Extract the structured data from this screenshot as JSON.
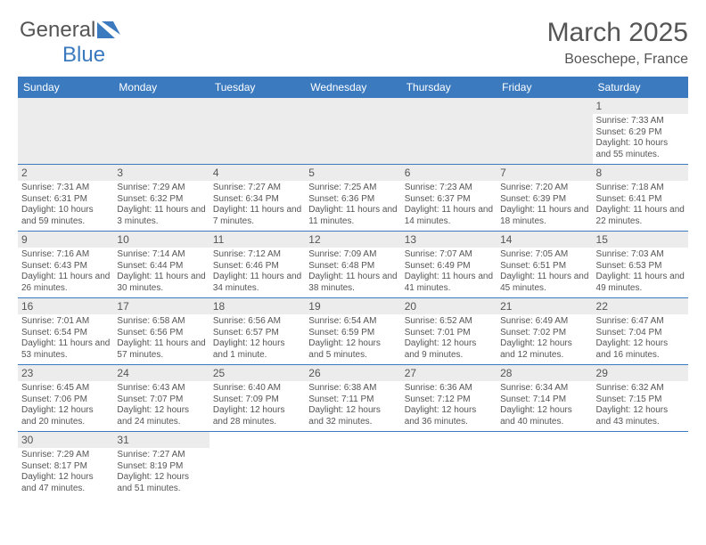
{
  "logo": {
    "text_general": "General",
    "text_blue": "Blue"
  },
  "title": "March 2025",
  "location": "Boeschepe, France",
  "colors": {
    "header_bg": "#3b7abf",
    "header_text": "#ffffff",
    "body_text": "#555555",
    "daynum_bg": "#ececec",
    "border": "#3b7abf"
  },
  "weekdays": [
    "Sunday",
    "Monday",
    "Tuesday",
    "Wednesday",
    "Thursday",
    "Friday",
    "Saturday"
  ],
  "grid": [
    [
      {
        "blank": true
      },
      {
        "blank": true
      },
      {
        "blank": true
      },
      {
        "blank": true
      },
      {
        "blank": true
      },
      {
        "blank": true
      },
      {
        "day": "1",
        "sunrise": "Sunrise: 7:33 AM",
        "sunset": "Sunset: 6:29 PM",
        "daylight": "Daylight: 10 hours and 55 minutes."
      }
    ],
    [
      {
        "day": "2",
        "sunrise": "Sunrise: 7:31 AM",
        "sunset": "Sunset: 6:31 PM",
        "daylight": "Daylight: 10 hours and 59 minutes."
      },
      {
        "day": "3",
        "sunrise": "Sunrise: 7:29 AM",
        "sunset": "Sunset: 6:32 PM",
        "daylight": "Daylight: 11 hours and 3 minutes."
      },
      {
        "day": "4",
        "sunrise": "Sunrise: 7:27 AM",
        "sunset": "Sunset: 6:34 PM",
        "daylight": "Daylight: 11 hours and 7 minutes."
      },
      {
        "day": "5",
        "sunrise": "Sunrise: 7:25 AM",
        "sunset": "Sunset: 6:36 PM",
        "daylight": "Daylight: 11 hours and 11 minutes."
      },
      {
        "day": "6",
        "sunrise": "Sunrise: 7:23 AM",
        "sunset": "Sunset: 6:37 PM",
        "daylight": "Daylight: 11 hours and 14 minutes."
      },
      {
        "day": "7",
        "sunrise": "Sunrise: 7:20 AM",
        "sunset": "Sunset: 6:39 PM",
        "daylight": "Daylight: 11 hours and 18 minutes."
      },
      {
        "day": "8",
        "sunrise": "Sunrise: 7:18 AM",
        "sunset": "Sunset: 6:41 PM",
        "daylight": "Daylight: 11 hours and 22 minutes."
      }
    ],
    [
      {
        "day": "9",
        "sunrise": "Sunrise: 7:16 AM",
        "sunset": "Sunset: 6:43 PM",
        "daylight": "Daylight: 11 hours and 26 minutes."
      },
      {
        "day": "10",
        "sunrise": "Sunrise: 7:14 AM",
        "sunset": "Sunset: 6:44 PM",
        "daylight": "Daylight: 11 hours and 30 minutes."
      },
      {
        "day": "11",
        "sunrise": "Sunrise: 7:12 AM",
        "sunset": "Sunset: 6:46 PM",
        "daylight": "Daylight: 11 hours and 34 minutes."
      },
      {
        "day": "12",
        "sunrise": "Sunrise: 7:09 AM",
        "sunset": "Sunset: 6:48 PM",
        "daylight": "Daylight: 11 hours and 38 minutes."
      },
      {
        "day": "13",
        "sunrise": "Sunrise: 7:07 AM",
        "sunset": "Sunset: 6:49 PM",
        "daylight": "Daylight: 11 hours and 41 minutes."
      },
      {
        "day": "14",
        "sunrise": "Sunrise: 7:05 AM",
        "sunset": "Sunset: 6:51 PM",
        "daylight": "Daylight: 11 hours and 45 minutes."
      },
      {
        "day": "15",
        "sunrise": "Sunrise: 7:03 AM",
        "sunset": "Sunset: 6:53 PM",
        "daylight": "Daylight: 11 hours and 49 minutes."
      }
    ],
    [
      {
        "day": "16",
        "sunrise": "Sunrise: 7:01 AM",
        "sunset": "Sunset: 6:54 PM",
        "daylight": "Daylight: 11 hours and 53 minutes."
      },
      {
        "day": "17",
        "sunrise": "Sunrise: 6:58 AM",
        "sunset": "Sunset: 6:56 PM",
        "daylight": "Daylight: 11 hours and 57 minutes."
      },
      {
        "day": "18",
        "sunrise": "Sunrise: 6:56 AM",
        "sunset": "Sunset: 6:57 PM",
        "daylight": "Daylight: 12 hours and 1 minute."
      },
      {
        "day": "19",
        "sunrise": "Sunrise: 6:54 AM",
        "sunset": "Sunset: 6:59 PM",
        "daylight": "Daylight: 12 hours and 5 minutes."
      },
      {
        "day": "20",
        "sunrise": "Sunrise: 6:52 AM",
        "sunset": "Sunset: 7:01 PM",
        "daylight": "Daylight: 12 hours and 9 minutes."
      },
      {
        "day": "21",
        "sunrise": "Sunrise: 6:49 AM",
        "sunset": "Sunset: 7:02 PM",
        "daylight": "Daylight: 12 hours and 12 minutes."
      },
      {
        "day": "22",
        "sunrise": "Sunrise: 6:47 AM",
        "sunset": "Sunset: 7:04 PM",
        "daylight": "Daylight: 12 hours and 16 minutes."
      }
    ],
    [
      {
        "day": "23",
        "sunrise": "Sunrise: 6:45 AM",
        "sunset": "Sunset: 7:06 PM",
        "daylight": "Daylight: 12 hours and 20 minutes."
      },
      {
        "day": "24",
        "sunrise": "Sunrise: 6:43 AM",
        "sunset": "Sunset: 7:07 PM",
        "daylight": "Daylight: 12 hours and 24 minutes."
      },
      {
        "day": "25",
        "sunrise": "Sunrise: 6:40 AM",
        "sunset": "Sunset: 7:09 PM",
        "daylight": "Daylight: 12 hours and 28 minutes."
      },
      {
        "day": "26",
        "sunrise": "Sunrise: 6:38 AM",
        "sunset": "Sunset: 7:11 PM",
        "daylight": "Daylight: 12 hours and 32 minutes."
      },
      {
        "day": "27",
        "sunrise": "Sunrise: 6:36 AM",
        "sunset": "Sunset: 7:12 PM",
        "daylight": "Daylight: 12 hours and 36 minutes."
      },
      {
        "day": "28",
        "sunrise": "Sunrise: 6:34 AM",
        "sunset": "Sunset: 7:14 PM",
        "daylight": "Daylight: 12 hours and 40 minutes."
      },
      {
        "day": "29",
        "sunrise": "Sunrise: 6:32 AM",
        "sunset": "Sunset: 7:15 PM",
        "daylight": "Daylight: 12 hours and 43 minutes."
      }
    ],
    [
      {
        "day": "30",
        "sunrise": "Sunrise: 7:29 AM",
        "sunset": "Sunset: 8:17 PM",
        "daylight": "Daylight: 12 hours and 47 minutes."
      },
      {
        "day": "31",
        "sunrise": "Sunrise: 7:27 AM",
        "sunset": "Sunset: 8:19 PM",
        "daylight": "Daylight: 12 hours and 51 minutes."
      },
      {
        "blank": true
      },
      {
        "blank": true
      },
      {
        "blank": true
      },
      {
        "blank": true
      },
      {
        "blank": true
      }
    ]
  ]
}
